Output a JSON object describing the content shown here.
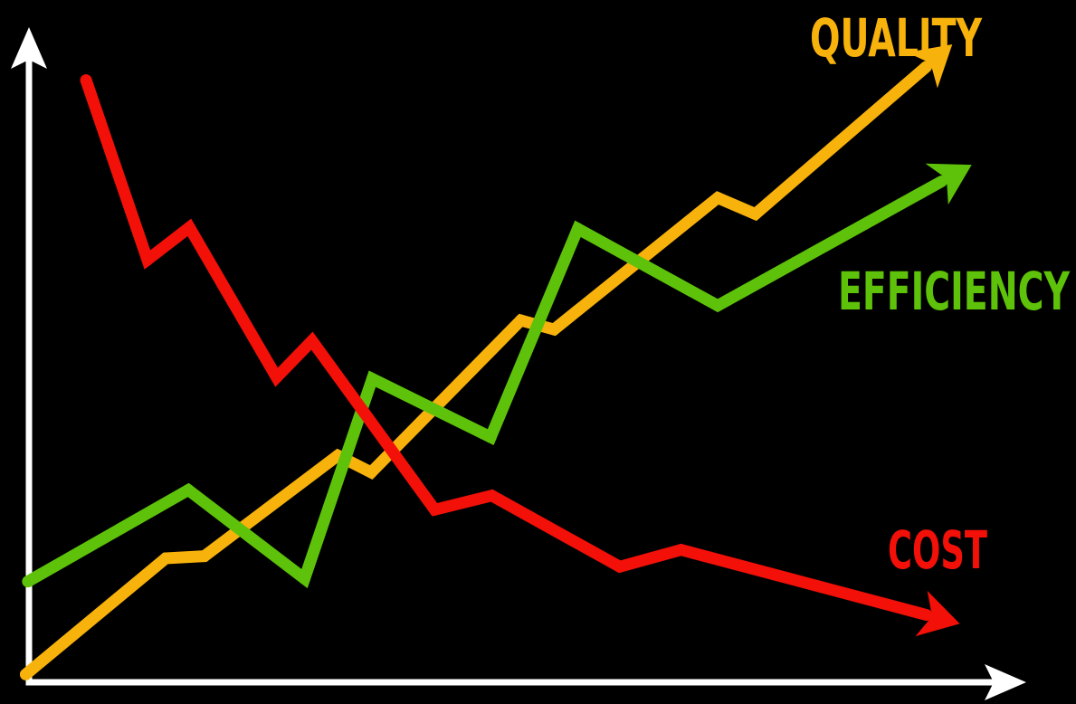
{
  "chart_data": {
    "type": "line",
    "title": "",
    "xlabel": "",
    "ylabel": "",
    "grid": false,
    "background": "#000000",
    "axis_color": "#ffffff",
    "xlim": [
      0,
      100
    ],
    "ylim": [
      0,
      100
    ],
    "series": [
      {
        "name": "QUALITY",
        "color": "#f8b20c",
        "x": [
          2.4,
          15.4,
          19.0,
          31.4,
          34.5,
          48.4,
          51.5,
          66.7,
          70.2,
          88.5
        ],
        "y": [
          4.2,
          20.7,
          21.0,
          35.3,
          32.9,
          54.5,
          53.2,
          71.9,
          69.6,
          93.7
        ]
      },
      {
        "name": "EFFICIENCY",
        "color": "#5ec20a",
        "x": [
          2.6,
          17.5,
          28.3,
          34.6,
          45.6,
          53.7,
          66.7,
          90.3
        ],
        "y": [
          17.4,
          30.4,
          17.8,
          46.2,
          37.9,
          67.5,
          56.6,
          76.6
        ]
      },
      {
        "name": "COST",
        "color": "#f21008",
        "x": [
          8.0,
          13.7,
          17.6,
          25.7,
          29.0,
          40.4,
          45.7,
          57.6,
          63.3,
          89.2
        ],
        "y": [
          88.6,
          63.1,
          67.7,
          46.4,
          51.6,
          27.6,
          29.6,
          19.5,
          21.9,
          11.4
        ]
      }
    ]
  },
  "labels": {
    "quality": "QUALITY",
    "efficiency": "EFFICIENCY",
    "cost": "COST"
  }
}
